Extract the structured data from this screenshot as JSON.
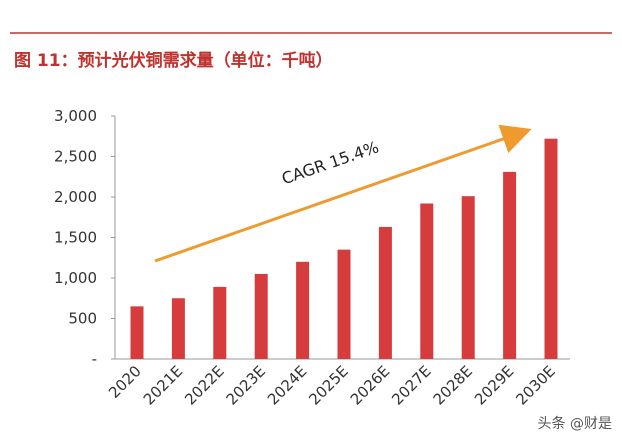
{
  "chart_data": {
    "type": "bar",
    "title": "图 11：预计光伏铜需求量（单位：千吨）",
    "categories": [
      "2020",
      "2021E",
      "2022E",
      "2023E",
      "2024E",
      "2025E",
      "2026E",
      "2027E",
      "2028E",
      "2029E",
      "2030E"
    ],
    "values": [
      650,
      750,
      890,
      1050,
      1200,
      1350,
      1630,
      1920,
      2010,
      2310,
      2720
    ],
    "color": "#d63c3c",
    "ylim": [
      0,
      3000
    ],
    "yticks": [
      {
        "value": 0,
        "label": "-"
      },
      500,
      {
        "value": 1000,
        "label": "1,000"
      },
      {
        "value": 1500,
        "label": "1,500"
      },
      {
        "value": 2000,
        "label": "2,000"
      },
      {
        "value": 2500,
        "label": "2,500"
      },
      {
        "value": 3000,
        "label": "3,000"
      }
    ],
    "annotation": "CAGR 15.4%",
    "watermark": "头条 @财是"
  }
}
